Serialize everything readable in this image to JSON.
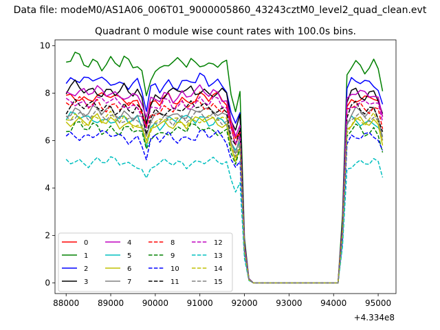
{
  "figure": {
    "suptitle": "Data file: modeM0/AS1A06_006T01_9000005860_43243cztM0_level2_quad_clean.evt"
  },
  "chart_data": {
    "type": "line",
    "title": "Quadrant 0 module wise count rates with 100.0s bins.",
    "xlabel": "",
    "ylabel": "",
    "x_offset_label": "+4.334e8",
    "xlim": [
      87750,
      95400
    ],
    "ylim": [
      -0.45,
      10.25
    ],
    "xticks": [
      88000,
      89000,
      90000,
      91000,
      92000,
      93000,
      94000,
      95000
    ],
    "yticks": [
      0,
      2,
      4,
      6,
      8,
      10
    ],
    "grid": false,
    "legend": {
      "placement": "lower-left",
      "ncol": 4
    },
    "x_start": 88000,
    "x_step": 100,
    "profile": [
      1.0,
      1.01,
      1.02,
      1.012,
      1.0,
      0.992,
      1.005,
      1.01,
      0.995,
      1.0,
      1.01,
      0.998,
      0.99,
      1.005,
      0.985,
      0.98,
      0.99,
      0.95,
      0.85,
      0.95,
      0.975,
      0.965,
      0.99,
      1.0,
      0.985,
      0.99,
      1.0,
      0.985,
      1.0,
      0.995,
      1.01,
      1.005,
      0.99,
      1.0,
      1.0,
      0.99,
      0.98,
      0.85,
      0.78,
      0.85,
      0.2,
      0.02,
      0,
      0,
      0,
      0,
      0,
      0,
      0,
      0,
      0,
      0,
      0,
      0,
      0,
      0,
      0,
      0,
      0,
      0,
      0,
      0,
      0.3,
      0.95,
      0.99,
      1.0,
      0.99,
      0.98,
      0.99,
      1.0,
      0.97,
      0.88
    ],
    "series": [
      {
        "name": "0",
        "color": "#ff0000",
        "dash": "solid",
        "level": 7.8,
        "amp": 0.28,
        "seed": 3
      },
      {
        "name": "1",
        "color": "#008000",
        "dash": "solid",
        "level": 9.3,
        "amp": 0.32,
        "seed": 7
      },
      {
        "name": "2",
        "color": "#0000ff",
        "dash": "solid",
        "level": 8.5,
        "amp": 0.3,
        "seed": 11
      },
      {
        "name": "3",
        "color": "#000000",
        "dash": "solid",
        "level": 8.1,
        "amp": 0.3,
        "seed": 13
      },
      {
        "name": "4",
        "color": "#bf00bf",
        "dash": "solid",
        "level": 8.0,
        "amp": 0.3,
        "seed": 17
      },
      {
        "name": "5",
        "color": "#00bfbf",
        "dash": "solid",
        "level": 6.9,
        "amp": 0.28,
        "seed": 19
      },
      {
        "name": "6",
        "color": "#bfbf00",
        "dash": "solid",
        "level": 6.8,
        "amp": 0.28,
        "seed": 23
      },
      {
        "name": "7",
        "color": "#808080",
        "dash": "solid",
        "level": 7.2,
        "amp": 0.28,
        "seed": 29
      },
      {
        "name": "8",
        "color": "#ff0000",
        "dash": "dashed",
        "level": 7.5,
        "amp": 0.3,
        "seed": 31
      },
      {
        "name": "9",
        "color": "#008000",
        "dash": "dashed",
        "level": 6.5,
        "amp": 0.28,
        "seed": 37
      },
      {
        "name": "10",
        "color": "#0000ff",
        "dash": "dashed",
        "level": 6.2,
        "amp": 0.28,
        "seed": 41
      },
      {
        "name": "11",
        "color": "#000000",
        "dash": "dashed",
        "level": 7.4,
        "amp": 0.3,
        "seed": 43
      },
      {
        "name": "12",
        "color": "#bf00bf",
        "dash": "dashed",
        "level": 7.6,
        "amp": 0.3,
        "seed": 47
      },
      {
        "name": "13",
        "color": "#00bfbf",
        "dash": "dashed",
        "level": 5.1,
        "amp": 0.22,
        "seed": 53
      },
      {
        "name": "14",
        "color": "#bfbf00",
        "dash": "dashed",
        "level": 6.9,
        "amp": 0.28,
        "seed": 59
      },
      {
        "name": "15",
        "color": "#808080",
        "dash": "dashed",
        "level": 7.0,
        "amp": 0.28,
        "seed": 61
      }
    ]
  }
}
